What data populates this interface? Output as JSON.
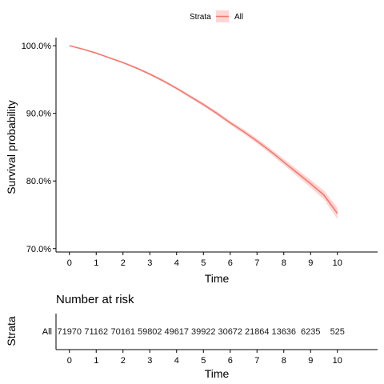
{
  "chart_data": [
    {
      "type": "line",
      "subtype": "survival-curve",
      "title": "",
      "xlabel": "Time",
      "ylabel": "Survival probability",
      "xlim": [
        -0.5,
        11.5
      ],
      "ylim": [
        0.695,
        1.012
      ],
      "x_ticks": [
        0,
        1,
        2,
        3,
        4,
        5,
        6,
        7,
        8,
        9,
        10
      ],
      "y_ticks": [
        0.7,
        0.8,
        0.9,
        1.0
      ],
      "y_tick_labels": [
        "70.0%",
        "80.0%",
        "90.0%",
        "100.0%"
      ],
      "grid": false,
      "legend": {
        "title": "Strata",
        "position": "top",
        "entries": [
          "All"
        ]
      },
      "series": [
        {
          "name": "All",
          "color": "#F8766D",
          "ci_color": "#F8766D",
          "x": [
            0,
            0.5,
            1,
            1.5,
            2,
            2.5,
            3,
            3.5,
            4,
            4.5,
            5,
            5.5,
            6,
            6.5,
            7,
            7.5,
            8,
            8.5,
            9,
            9.5,
            10
          ],
          "y": [
            1.0,
            0.995,
            0.989,
            0.982,
            0.975,
            0.967,
            0.958,
            0.948,
            0.937,
            0.925,
            0.913,
            0.9,
            0.886,
            0.873,
            0.859,
            0.844,
            0.828,
            0.812,
            0.796,
            0.779,
            0.752
          ],
          "ci_width": [
            0.0,
            0.0006,
            0.0008,
            0.001,
            0.0012,
            0.0014,
            0.0016,
            0.0018,
            0.002,
            0.0022,
            0.0024,
            0.0026,
            0.0029,
            0.0032,
            0.0036,
            0.004,
            0.0045,
            0.005,
            0.0056,
            0.0066,
            0.0085
          ]
        }
      ]
    },
    {
      "type": "table",
      "title": "Number at risk",
      "xlabel": "Time",
      "ylabel": "Strata",
      "x_ticks": [
        0,
        1,
        2,
        3,
        4,
        5,
        6,
        7,
        8,
        9,
        10
      ],
      "rows": [
        {
          "name": "All",
          "color": "#F8766D",
          "values": [
            "71970",
            "71162",
            "70161",
            "59802",
            "49617",
            "39922",
            "30672",
            "21864",
            "13636",
            "6235",
            "525"
          ]
        }
      ]
    }
  ]
}
